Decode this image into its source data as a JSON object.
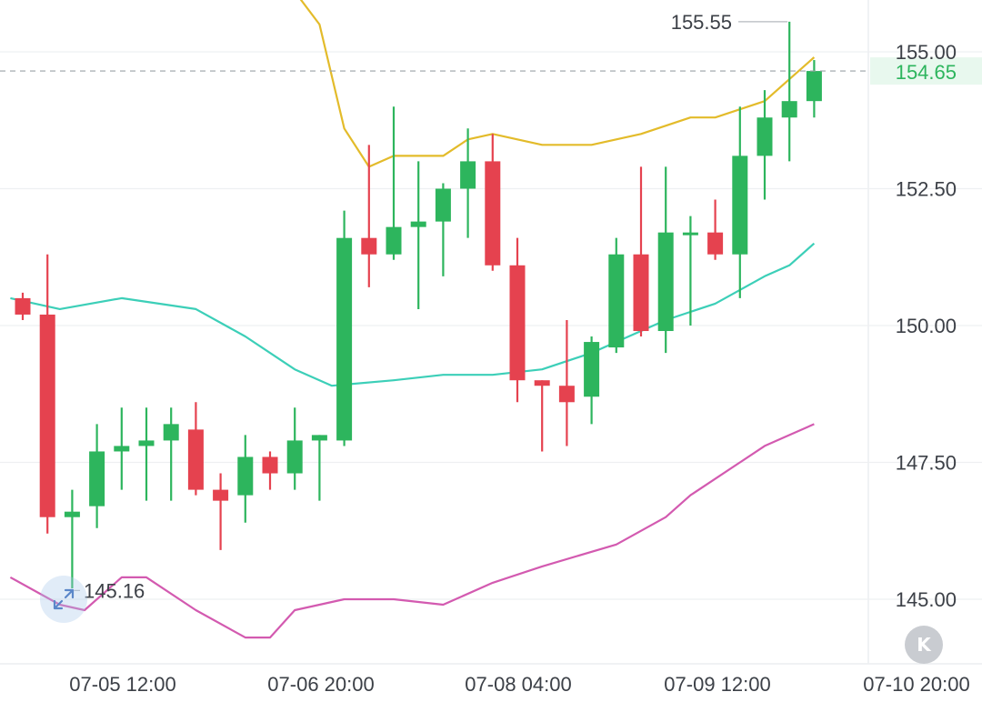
{
  "chart_data": {
    "type": "candlestick",
    "y_axis": {
      "ticks": [
        "145.00",
        "147.50",
        "150.00",
        "152.50",
        "155.00"
      ],
      "range": [
        143.5,
        157.0
      ]
    },
    "x_axis": {
      "ticks": [
        "07-05 12:00",
        "07-06 20:00",
        "07-08 04:00",
        "07-09 12:00",
        "07-10 20:00"
      ]
    },
    "current_price": "154.65",
    "high_label": "155.55",
    "low_label": "145.16",
    "candles": [
      {
        "o": 150.5,
        "h": 150.6,
        "l": 150.1,
        "c": 150.2
      },
      {
        "o": 150.2,
        "h": 151.3,
        "l": 146.2,
        "c": 146.5
      },
      {
        "o": 146.5,
        "h": 147.0,
        "l": 145.2,
        "c": 146.6
      },
      {
        "o": 146.7,
        "h": 148.2,
        "l": 146.3,
        "c": 147.7
      },
      {
        "o": 147.7,
        "h": 148.5,
        "l": 147.0,
        "c": 147.8
      },
      {
        "o": 147.8,
        "h": 148.5,
        "l": 146.8,
        "c": 147.9
      },
      {
        "o": 147.9,
        "h": 148.5,
        "l": 146.8,
        "c": 148.2
      },
      {
        "o": 148.1,
        "h": 148.6,
        "l": 146.9,
        "c": 147.0
      },
      {
        "o": 147.0,
        "h": 147.3,
        "l": 145.9,
        "c": 146.8
      },
      {
        "o": 146.9,
        "h": 148.0,
        "l": 146.4,
        "c": 147.6
      },
      {
        "o": 147.6,
        "h": 147.7,
        "l": 147.0,
        "c": 147.3
      },
      {
        "o": 147.3,
        "h": 148.5,
        "l": 147.0,
        "c": 147.9
      },
      {
        "o": 147.9,
        "h": 148.0,
        "l": 146.8,
        "c": 148.0
      },
      {
        "o": 147.9,
        "h": 152.1,
        "l": 147.8,
        "c": 151.6
      },
      {
        "o": 151.6,
        "h": 153.3,
        "l": 150.7,
        "c": 151.3
      },
      {
        "o": 151.3,
        "h": 154.0,
        "l": 151.2,
        "c": 151.8
      },
      {
        "o": 151.8,
        "h": 153.0,
        "l": 150.3,
        "c": 151.9
      },
      {
        "o": 151.9,
        "h": 152.6,
        "l": 150.9,
        "c": 152.5
      },
      {
        "o": 152.5,
        "h": 153.6,
        "l": 151.6,
        "c": 153.0
      },
      {
        "o": 153.0,
        "h": 153.5,
        "l": 151.0,
        "c": 151.1
      },
      {
        "o": 151.1,
        "h": 151.6,
        "l": 148.6,
        "c": 149.0
      },
      {
        "o": 149.0,
        "h": 149.0,
        "l": 147.7,
        "c": 148.9
      },
      {
        "o": 148.9,
        "h": 150.1,
        "l": 147.8,
        "c": 148.6
      },
      {
        "o": 148.7,
        "h": 149.8,
        "l": 148.2,
        "c": 149.7
      },
      {
        "o": 149.6,
        "h": 151.6,
        "l": 149.5,
        "c": 151.3
      },
      {
        "o": 151.3,
        "h": 152.9,
        "l": 149.8,
        "c": 149.9
      },
      {
        "o": 149.9,
        "h": 152.9,
        "l": 149.5,
        "c": 151.7
      },
      {
        "o": 151.7,
        "h": 152.0,
        "l": 150.0,
        "c": 151.7
      },
      {
        "o": 151.7,
        "h": 152.3,
        "l": 151.2,
        "c": 151.3
      },
      {
        "o": 151.3,
        "h": 154.0,
        "l": 150.5,
        "c": 153.1
      },
      {
        "o": 153.1,
        "h": 154.3,
        "l": 152.3,
        "c": 153.8
      },
      {
        "o": 153.8,
        "h": 155.55,
        "l": 153.0,
        "c": 154.1
      },
      {
        "o": 154.1,
        "h": 154.85,
        "l": 153.8,
        "c": 154.65
      }
    ],
    "bands": {
      "upper": [
        [
          -0.5,
          157.0
        ],
        [
          2,
          157.0
        ],
        [
          5,
          156.8
        ],
        [
          8,
          156.9
        ],
        [
          10,
          156.7
        ],
        [
          12,
          155.5
        ],
        [
          13,
          153.6
        ],
        [
          14,
          152.9
        ],
        [
          15,
          153.1
        ],
        [
          17,
          153.1
        ],
        [
          18,
          153.4
        ],
        [
          19,
          153.5
        ],
        [
          21,
          153.3
        ],
        [
          23,
          153.3
        ],
        [
          25,
          153.5
        ],
        [
          27,
          153.8
        ],
        [
          28,
          153.8
        ],
        [
          30,
          154.1
        ],
        [
          31,
          154.5
        ],
        [
          32,
          154.9
        ]
      ],
      "middle": [
        [
          -0.5,
          150.5
        ],
        [
          1.5,
          150.3
        ],
        [
          4,
          150.5
        ],
        [
          7,
          150.3
        ],
        [
          9,
          149.8
        ],
        [
          11,
          149.2
        ],
        [
          12.5,
          148.9
        ],
        [
          15,
          149.0
        ],
        [
          17,
          149.1
        ],
        [
          19,
          149.1
        ],
        [
          21,
          149.2
        ],
        [
          23,
          149.5
        ],
        [
          24.5,
          149.8
        ],
        [
          26,
          150.1
        ],
        [
          28,
          150.4
        ],
        [
          30,
          150.9
        ],
        [
          31,
          151.1
        ],
        [
          32,
          151.5
        ]
      ],
      "lower": [
        [
          -0.5,
          145.4
        ],
        [
          1.5,
          144.9
        ],
        [
          2.5,
          144.8
        ],
        [
          4,
          145.4
        ],
        [
          5,
          145.4
        ],
        [
          7,
          144.8
        ],
        [
          9,
          144.3
        ],
        [
          10,
          144.3
        ],
        [
          11,
          144.8
        ],
        [
          13,
          145.0
        ],
        [
          15,
          145.0
        ],
        [
          17,
          144.9
        ],
        [
          19,
          145.3
        ],
        [
          21,
          145.6
        ],
        [
          24,
          146.0
        ],
        [
          26,
          146.5
        ],
        [
          27,
          146.9
        ],
        [
          29,
          147.5
        ],
        [
          30,
          147.8
        ],
        [
          31,
          148.0
        ],
        [
          32,
          148.2
        ]
      ]
    },
    "colors": {
      "up": "#2db55d",
      "down": "#e5424f",
      "upper_band": "#e3bb2a",
      "middle_band": "#3ccfb8",
      "lower_band": "#d35ab0",
      "price_label": "#2db55d",
      "price_label_bg": "#e8f8ee"
    },
    "grid": true,
    "legend": "none"
  },
  "controls": {
    "expand_icon": "expand-arrows-icon",
    "k_button": "K"
  }
}
